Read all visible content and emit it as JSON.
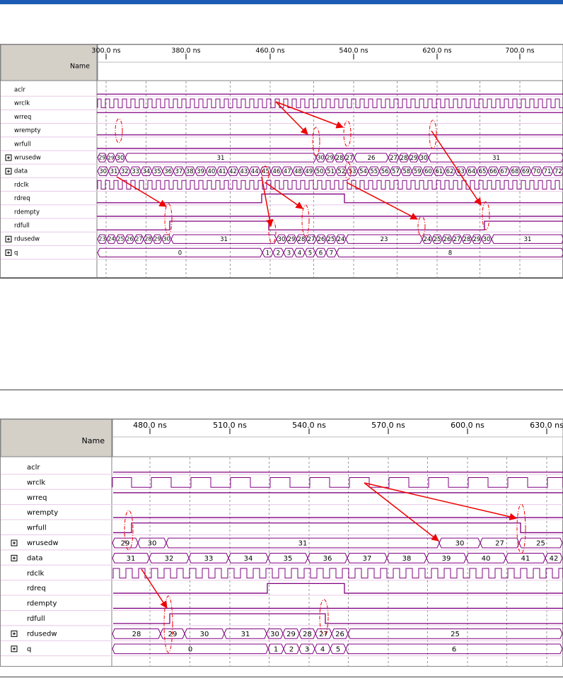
{
  "panels": [
    {
      "name_header": "Name",
      "ticks": [
        "300.0 ns",
        "380.0 ns",
        "460.0 ns",
        "540.0 ns",
        "620.0 ns",
        "700.0 ns"
      ],
      "signals": [
        {
          "name": "aclr"
        },
        {
          "name": "wrclk"
        },
        {
          "name": "wrreq"
        },
        {
          "name": "wrempty"
        },
        {
          "name": "wrfull"
        },
        {
          "name": "wrusedw",
          "values": [
            "29",
            "29",
            "30",
            "31",
            "30",
            "29",
            "28",
            "27",
            "26",
            "27",
            "28",
            "29",
            "30",
            "31"
          ]
        },
        {
          "name": "data",
          "values": [
            "30",
            "31",
            "32",
            "33",
            "34",
            "35",
            "36",
            "37",
            "38",
            "39",
            "40",
            "41",
            "42",
            "43",
            "44",
            "45",
            "46",
            "47",
            "48",
            "49",
            "50",
            "51",
            "52",
            "53",
            "54",
            "55",
            "56",
            "57",
            "58",
            "59",
            "60",
            "61",
            "62",
            "63",
            "64",
            "65",
            "66",
            "67",
            "68",
            "69",
            "70",
            "71",
            "72"
          ]
        },
        {
          "name": "rdclk"
        },
        {
          "name": "rdreq"
        },
        {
          "name": "rdempty"
        },
        {
          "name": "rdfull"
        },
        {
          "name": "rdusedw",
          "values": [
            "23",
            "24",
            "25",
            "26",
            "27",
            "28",
            "29",
            "30",
            "31",
            "30",
            "29",
            "28",
            "27",
            "26",
            "25",
            "24",
            "23",
            "24",
            "25",
            "26",
            "27",
            "28",
            "29",
            "30",
            "31"
          ]
        },
        {
          "name": "q",
          "values": [
            "0",
            "1",
            "2",
            "3",
            "4",
            "5",
            "6",
            "7",
            "8"
          ]
        }
      ]
    },
    {
      "name_header": "Name",
      "ticks": [
        "480.0 ns",
        "510.0 ns",
        "540.0 ns",
        "570.0 ns",
        "600.0 ns",
        "630.0 ns"
      ],
      "signals": [
        {
          "name": "aclr"
        },
        {
          "name": "wrclk"
        },
        {
          "name": "wrreq"
        },
        {
          "name": "wrempty"
        },
        {
          "name": "wrfull"
        },
        {
          "name": "wrusedw",
          "values": [
            "29",
            "30",
            "31",
            "30",
            "27",
            "25"
          ]
        },
        {
          "name": "data",
          "values": [
            "31",
            "32",
            "33",
            "34",
            "35",
            "36",
            "37",
            "38",
            "39",
            "40",
            "41",
            "42"
          ]
        },
        {
          "name": "rdclk"
        },
        {
          "name": "rdreq"
        },
        {
          "name": "rdempty"
        },
        {
          "name": "rdfull"
        },
        {
          "name": "rdusedw",
          "values": [
            "28",
            "29",
            "30",
            "31",
            "30",
            "29",
            "28",
            "27",
            "26",
            "25"
          ]
        },
        {
          "name": "q",
          "values": [
            "0",
            "1",
            "2",
            "3",
            "4",
            "5",
            "6"
          ]
        }
      ]
    }
  ]
}
